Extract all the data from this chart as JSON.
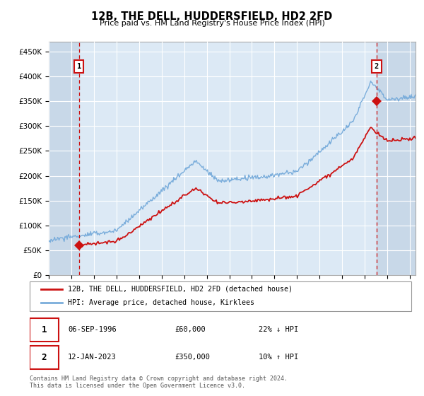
{
  "title": "12B, THE DELL, HUDDERSFIELD, HD2 2FD",
  "subtitle": "Price paid vs. HM Land Registry's House Price Index (HPI)",
  "legend_line1": "12B, THE DELL, HUDDERSFIELD, HD2 2FD (detached house)",
  "legend_line2": "HPI: Average price, detached house, Kirklees",
  "annotation1_date": "06-SEP-1996",
  "annotation1_price": "£60,000",
  "annotation1_hpi": "22% ↓ HPI",
  "annotation2_date": "12-JAN-2023",
  "annotation2_price": "£350,000",
  "annotation2_hpi": "10% ↑ HPI",
  "footer": "Contains HM Land Registry data © Crown copyright and database right 2024.\nThis data is licensed under the Open Government Licence v3.0.",
  "hpi_color": "#7aaddb",
  "price_color": "#cc1111",
  "marker_color": "#cc1111",
  "plot_bg_color": "#dce9f5",
  "hatch_bg_color": "#c8d8e8",
  "grid_color": "#ffffff",
  "ylim": [
    0,
    470000
  ],
  "yticks": [
    0,
    50000,
    100000,
    150000,
    200000,
    250000,
    300000,
    350000,
    400000,
    450000
  ],
  "sale1_x": 1996.67,
  "sale1_y": 60000,
  "sale2_x": 2023.04,
  "sale2_y": 350000,
  "xmin": 1994.0,
  "xmax": 2026.5
}
